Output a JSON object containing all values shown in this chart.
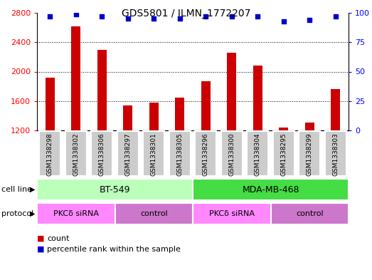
{
  "title": "GDS5801 / ILMN_1772207",
  "samples": [
    "GSM1338298",
    "GSM1338302",
    "GSM1338306",
    "GSM1338297",
    "GSM1338301",
    "GSM1338305",
    "GSM1338296",
    "GSM1338300",
    "GSM1338304",
    "GSM1338295",
    "GSM1338299",
    "GSM1338303"
  ],
  "counts": [
    1920,
    2620,
    2300,
    1540,
    1580,
    1650,
    1870,
    2260,
    2080,
    1240,
    1310,
    1760
  ],
  "percentiles": [
    97,
    99,
    97,
    95,
    95,
    95,
    97,
    97,
    97,
    93,
    94,
    97
  ],
  "bar_color": "#cc0000",
  "dot_color": "#0000cc",
  "ylim_left": [
    1200,
    2800
  ],
  "ylim_right": [
    0,
    100
  ],
  "yticks_left": [
    1200,
    1600,
    2000,
    2400,
    2800
  ],
  "yticks_right": [
    0,
    25,
    50,
    75,
    100
  ],
  "cell_line_groups": [
    {
      "label": "BT-549",
      "start": 0,
      "end": 6,
      "color": "#bbffbb"
    },
    {
      "label": "MDA-MB-468",
      "start": 6,
      "end": 12,
      "color": "#44dd44"
    }
  ],
  "protocol_groups": [
    {
      "label": "PKCδ siRNA",
      "start": 0,
      "end": 3,
      "color": "#ff77ff"
    },
    {
      "label": "control",
      "start": 3,
      "end": 6,
      "color": "#dd88dd"
    },
    {
      "label": "PKCδ siRNA",
      "start": 6,
      "end": 9,
      "color": "#ff77ff"
    },
    {
      "label": "control",
      "start": 9,
      "end": 12,
      "color": "#dd88dd"
    }
  ],
  "legend_count_label": "count",
  "legend_pct_label": "percentile rank within the sample",
  "cell_line_label": "cell line",
  "protocol_label": "protocol",
  "sample_box_color": "#cccccc",
  "sample_box_edge": "#ffffff"
}
